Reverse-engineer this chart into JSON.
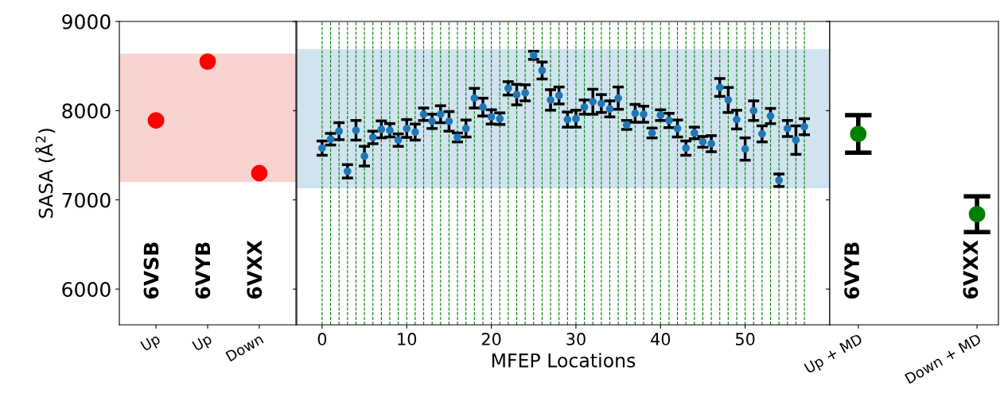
{
  "chart_data": [
    {
      "type": "scatter",
      "ylabel": "SASA (Å$^{2}$)",
      "categories": [
        "Up",
        "Up",
        "Down"
      ],
      "ylim": [
        5600,
        9000
      ],
      "yticks": [
        6000,
        7000,
        8000,
        9000
      ],
      "marker": "circle",
      "series": [
        {
          "color": "#ff0000",
          "values": [
            7890,
            8550,
            7300
          ]
        }
      ],
      "bands": [
        {
          "axis": "y",
          "from": 7200,
          "to": 8640,
          "color": "#f8d3d0"
        }
      ],
      "annotations": [
        "6VSB",
        "6VYB",
        "6VXX"
      ]
    },
    {
      "type": "scatter",
      "xlabel": "MFEP Locations",
      "xlim": [
        -3,
        60
      ],
      "xticks": [
        0,
        10,
        20,
        30,
        40,
        50
      ],
      "ylim": [
        5600,
        9000
      ],
      "yticks": [
        6000,
        7000,
        8000,
        9000
      ],
      "tick_labels": "x",
      "marker": "circle",
      "x": [
        0,
        1,
        2,
        3,
        4,
        5,
        6,
        7,
        8,
        9,
        10,
        11,
        12,
        13,
        14,
        15,
        16,
        17,
        18,
        19,
        20,
        21,
        22,
        23,
        24,
        25,
        26,
        27,
        28,
        29,
        30,
        31,
        32,
        33,
        34,
        35,
        36,
        37,
        38,
        39,
        40,
        41,
        42,
        43,
        44,
        45,
        46,
        47,
        48,
        49,
        50,
        51,
        52,
        53,
        54,
        55,
        56,
        57
      ],
      "series": [
        {
          "color": "#1f77b4",
          "values": [
            7580,
            7680,
            7770,
            7320,
            7780,
            7490,
            7700,
            7790,
            7780,
            7670,
            7800,
            7760,
            7960,
            7880,
            7960,
            7880,
            7700,
            7800,
            8140,
            8040,
            7930,
            7910,
            8250,
            8180,
            8200,
            8620,
            8450,
            8120,
            8170,
            7900,
            7910,
            8040,
            8100,
            8080,
            8020,
            8140,
            7840,
            7970,
            7960,
            7750,
            7950,
            7890,
            7800,
            7580,
            7750,
            7650,
            7630,
            8260,
            8120,
            7900,
            7570,
            8000,
            7740,
            7940,
            7220,
            7800,
            7670,
            7820
          ],
          "errors": [
            80,
            65,
            95,
            75,
            110,
            110,
            70,
            95,
            75,
            70,
            100,
            90,
            70,
            80,
            95,
            110,
            50,
            95,
            110,
            100,
            80,
            65,
            75,
            115,
            90,
            45,
            95,
            115,
            95,
            85,
            95,
            80,
            140,
            100,
            90,
            125,
            50,
            100,
            90,
            55,
            60,
            80,
            95,
            80,
            65,
            60,
            90,
            100,
            140,
            105,
            125,
            110,
            90,
            85,
            70,
            90,
            160,
            90
          ]
        }
      ],
      "bands": [
        {
          "axis": "y",
          "from": 7130,
          "to": 8690,
          "color": "#d0e3ef"
        }
      ],
      "ref_lines": [
        {
          "axis": "x",
          "value": 0,
          "color": "#008000",
          "line_style": "dashed"
        },
        {
          "axis": "x",
          "value": 1,
          "color": "#008000",
          "line_style": "dashed"
        },
        {
          "axis": "x",
          "value": 2,
          "color": "#008000",
          "line_style": "dashed"
        },
        {
          "axis": "x",
          "value": 3,
          "color": "#008000",
          "line_style": "dashed"
        },
        {
          "axis": "x",
          "value": 4,
          "color": "#008000",
          "line_style": "dashed"
        },
        {
          "axis": "x",
          "value": 5,
          "color": "#008000",
          "line_style": "dashed"
        },
        {
          "axis": "x",
          "value": 6,
          "color": "#008000",
          "line_style": "dashed"
        },
        {
          "axis": "x",
          "value": 7,
          "color": "#008000",
          "line_style": "dashed"
        },
        {
          "axis": "x",
          "value": 8,
          "color": "#008000",
          "line_style": "dashed"
        },
        {
          "axis": "x",
          "value": 9,
          "color": "#008000",
          "line_style": "dashed"
        },
        {
          "axis": "x",
          "value": 10,
          "color": "#008000",
          "line_style": "dashed"
        },
        {
          "axis": "x",
          "value": 11,
          "color": "#008000",
          "line_style": "dashed"
        },
        {
          "axis": "x",
          "value": 12,
          "color": "#008000",
          "line_style": "dashed"
        },
        {
          "axis": "x",
          "value": 13,
          "color": "#008000",
          "line_style": "dashed"
        },
        {
          "axis": "x",
          "value": 14,
          "color": "#008000",
          "line_style": "dashed"
        },
        {
          "axis": "x",
          "value": 15,
          "color": "#008000",
          "line_style": "dashed"
        },
        {
          "axis": "x",
          "value": 16,
          "color": "#008000",
          "line_style": "dashed"
        },
        {
          "axis": "x",
          "value": 17,
          "color": "#008000",
          "line_style": "dashed"
        },
        {
          "axis": "x",
          "value": 18,
          "color": "#008000",
          "line_style": "dashed"
        },
        {
          "axis": "x",
          "value": 19,
          "color": "#008000",
          "line_style": "dashed"
        },
        {
          "axis": "x",
          "value": 20,
          "color": "#008000",
          "line_style": "dashed"
        },
        {
          "axis": "x",
          "value": 21,
          "color": "#008000",
          "line_style": "dashed"
        },
        {
          "axis": "x",
          "value": 22,
          "color": "#008000",
          "line_style": "dashed"
        },
        {
          "axis": "x",
          "value": 23,
          "color": "#008000",
          "line_style": "dashed"
        },
        {
          "axis": "x",
          "value": 24,
          "color": "#008000",
          "line_style": "dashed"
        },
        {
          "axis": "x",
          "value": 25,
          "color": "#008000",
          "line_style": "dashed"
        },
        {
          "axis": "x",
          "value": 26,
          "color": "#008000",
          "line_style": "dashed"
        },
        {
          "axis": "x",
          "value": 27,
          "color": "#008000",
          "line_style": "dashed"
        },
        {
          "axis": "x",
          "value": 28,
          "color": "#008000",
          "line_style": "dashed"
        },
        {
          "axis": "x",
          "value": 29,
          "color": "#008000",
          "line_style": "dashed"
        },
        {
          "axis": "x",
          "value": 30,
          "color": "#008000",
          "line_style": "dashed"
        },
        {
          "axis": "x",
          "value": 31,
          "color": "#008000",
          "line_style": "dashed"
        },
        {
          "axis": "x",
          "value": 32,
          "color": "#008000",
          "line_style": "dashed"
        },
        {
          "axis": "x",
          "value": 33,
          "color": "#008000",
          "line_style": "dashed"
        },
        {
          "axis": "x",
          "value": 34,
          "color": "#008000",
          "line_style": "dashed"
        },
        {
          "axis": "x",
          "value": 35,
          "color": "#008000",
          "line_style": "dashed"
        },
        {
          "axis": "x",
          "value": 36,
          "color": "#008000",
          "line_style": "dashed"
        },
        {
          "axis": "x",
          "value": 37,
          "color": "#008000",
          "line_style": "dashed"
        },
        {
          "axis": "x",
          "value": 38,
          "color": "#008000",
          "line_style": "dashed"
        },
        {
          "axis": "x",
          "value": 39,
          "color": "#008000",
          "line_style": "dashed"
        },
        {
          "axis": "x",
          "value": 40,
          "color": "#008000",
          "line_style": "dashed"
        },
        {
          "axis": "x",
          "value": 41,
          "color": "#008000",
          "line_style": "dashed"
        },
        {
          "axis": "x",
          "value": 42,
          "color": "#008000",
          "line_style": "dashed"
        },
        {
          "axis": "x",
          "value": 43,
          "color": "#008000",
          "line_style": "dashed"
        },
        {
          "axis": "x",
          "value": 44,
          "color": "#008000",
          "line_style": "dashed"
        },
        {
          "axis": "x",
          "value": 45,
          "color": "#008000",
          "line_style": "dashed"
        },
        {
          "axis": "x",
          "value": 46,
          "color": "#008000",
          "line_style": "dashed"
        },
        {
          "axis": "x",
          "value": 47,
          "color": "#008000",
          "line_style": "dashed"
        },
        {
          "axis": "x",
          "value": 48,
          "color": "#008000",
          "line_style": "dashed"
        },
        {
          "axis": "x",
          "value": 49,
          "color": "#008000",
          "line_style": "dashed"
        },
        {
          "axis": "x",
          "value": 50,
          "color": "#008000",
          "line_style": "dashed"
        },
        {
          "axis": "x",
          "value": 51,
          "color": "#008000",
          "line_style": "dashed"
        },
        {
          "axis": "x",
          "value": 52,
          "color": "#008000",
          "line_style": "dashed"
        },
        {
          "axis": "x",
          "value": 53,
          "color": "#008000",
          "line_style": "dashed"
        },
        {
          "axis": "x",
          "value": 54,
          "color": "#008000",
          "line_style": "dashed"
        },
        {
          "axis": "x",
          "value": 55,
          "color": "#008000",
          "line_style": "dashed"
        },
        {
          "axis": "x",
          "value": 56,
          "color": "#008000",
          "line_style": "dashed"
        },
        {
          "axis": "x",
          "value": 57,
          "color": "#008000",
          "line_style": "dashed"
        }
      ]
    },
    {
      "type": "scatter",
      "categories": [
        "Up + MD",
        "Down + MD"
      ],
      "ylim": [
        5600,
        9000
      ],
      "yticks": [
        6000,
        7000,
        8000,
        9000
      ],
      "tick_labels": "x",
      "marker": "circle",
      "series": [
        {
          "color": "#008000",
          "values": [
            7740,
            6840
          ],
          "errors": [
            210,
            200
          ]
        }
      ],
      "annotations": [
        "6VYB",
        "6VXX"
      ]
    }
  ]
}
